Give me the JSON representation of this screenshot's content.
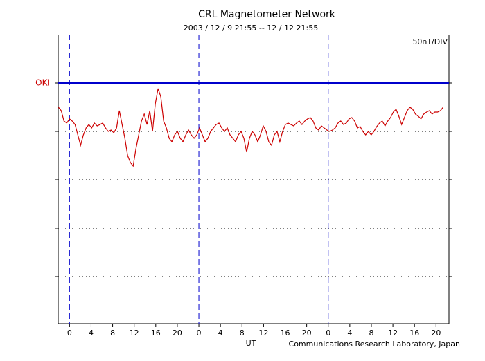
{
  "chart_data": {
    "type": "line",
    "title": "CRL Magnetometer Network",
    "subtitle": "2003 / 12 /  9   21:55 -- 12 / 12   21:55",
    "scale_label": "50nT/DIV",
    "xlabel": "UT",
    "credit": "Communications Research Laboratory, Japan",
    "xlim": [
      -2.1,
      70.4
    ],
    "ylim": [
      -248.6,
      50
    ],
    "xticks": [
      0,
      4,
      8,
      12,
      16,
      20,
      {
        "value": 24,
        "label": "0"
      },
      {
        "value": 28,
        "label": "4"
      },
      {
        "value": 32,
        "label": "8"
      },
      {
        "value": 36,
        "label": "12"
      },
      {
        "value": 40,
        "label": "16"
      },
      {
        "value": 44,
        "label": "20"
      },
      {
        "value": 48,
        "label": "0"
      },
      {
        "value": 52,
        "label": "4"
      },
      {
        "value": 56,
        "label": "8"
      },
      {
        "value": 60,
        "label": "12"
      },
      {
        "value": 64,
        "label": "16"
      },
      {
        "value": 68,
        "label": "20"
      }
    ],
    "yticks": [
      0,
      -50,
      -100,
      -150,
      -200
    ],
    "grid": true,
    "baseline_color": "#0000cc",
    "x": [
      -2.05,
      -1.54,
      -1.03,
      -0.51,
      0,
      0.51,
      1.03,
      1.54,
      2.05,
      2.57,
      3.08,
      3.59,
      4.11,
      4.62,
      5.13,
      5.65,
      6.16,
      6.68,
      7.19,
      7.7,
      8.22,
      8.73,
      9.24,
      9.76,
      10.27,
      10.78,
      11.3,
      11.81,
      12.32,
      12.84,
      13.35,
      13.86,
      14.38,
      14.89,
      15.4,
      15.92,
      16.43,
      16.94,
      17.46,
      17.97,
      18.49,
      19.0,
      19.51,
      20.03,
      20.54,
      21.05,
      21.57,
      22.08,
      22.59,
      23.11,
      23.62,
      24.13,
      24.65,
      25.16,
      25.67,
      26.19,
      26.7,
      27.21,
      27.73,
      28.24,
      28.75,
      29.27,
      29.78,
      30.3,
      30.81,
      31.32,
      31.84,
      32.35,
      32.86,
      33.38,
      33.89,
      34.4,
      34.92,
      35.43,
      35.94,
      36.46,
      36.97,
      37.48,
      38.0,
      38.51,
      39.02,
      39.54,
      40.05,
      40.56,
      41.08,
      41.59,
      42.11,
      42.62,
      43.13,
      43.65,
      44.16,
      44.67,
      45.19,
      45.7,
      46.21,
      46.73,
      47.24,
      47.75,
      48.27,
      48.78,
      49.29,
      49.81,
      50.32,
      50.83,
      51.35,
      51.86,
      52.37,
      52.89,
      53.4,
      53.92,
      54.43,
      54.94,
      55.46,
      55.97,
      56.48,
      57.0,
      57.51,
      58.02,
      58.54,
      59.05,
      59.56,
      60.08,
      60.59,
      61.1,
      61.62,
      62.13,
      62.64,
      63.16,
      63.67,
      64.18,
      64.7,
      65.21,
      65.73,
      66.24,
      66.75,
      67.27,
      67.78,
      68.29,
      68.81,
      69.32
    ],
    "series": [
      {
        "name": "OKI",
        "color": "#cc0000",
        "values": [
          -25,
          -28.6,
          -39.3,
          -41.4,
          -37.1,
          -39.3,
          -42.9,
          -53.6,
          -64.3,
          -53.6,
          -46.4,
          -42.9,
          -46.4,
          -41.4,
          -44.3,
          -42.9,
          -41.4,
          -46.4,
          -50,
          -48.6,
          -51.4,
          -46.4,
          -28.6,
          -42.9,
          -57.1,
          -75,
          -82.1,
          -85.7,
          -67.9,
          -53.6,
          -39.3,
          -32.1,
          -42.9,
          -28.6,
          -50,
          -21.4,
          -5.7,
          -14.3,
          -39.3,
          -46.4,
          -57.1,
          -60.7,
          -53.6,
          -50,
          -57.1,
          -60.7,
          -53.6,
          -48.6,
          -53.6,
          -57.1,
          -53.6,
          -46.4,
          -53.6,
          -60.7,
          -57.1,
          -50,
          -46.4,
          -42.9,
          -41.4,
          -46.4,
          -50,
          -46.4,
          -53.6,
          -57.1,
          -60.7,
          -53.6,
          -50,
          -57.1,
          -71.4,
          -57.1,
          -50,
          -53.6,
          -60.7,
          -53.6,
          -44.3,
          -50,
          -60.7,
          -64.3,
          -53.6,
          -50,
          -60.7,
          -50,
          -42.9,
          -41.4,
          -42.9,
          -44.3,
          -41.4,
          -39.3,
          -42.9,
          -39.3,
          -37.1,
          -35.7,
          -39.3,
          -46.4,
          -48.6,
          -44.3,
          -46.4,
          -48.6,
          -50,
          -48.6,
          -46.4,
          -41.4,
          -39.3,
          -42.9,
          -41.4,
          -37.1,
          -35.7,
          -39.3,
          -46.4,
          -45,
          -50,
          -53.6,
          -50,
          -53.6,
          -50,
          -45,
          -41.4,
          -39.3,
          -44.3,
          -39.3,
          -35.7,
          -30,
          -27.1,
          -34.3,
          -42.9,
          -35.7,
          -28.6,
          -25,
          -27.1,
          -32.1,
          -34.3,
          -37.1,
          -32.1,
          -30,
          -28.6,
          -32.1,
          -30,
          -30,
          -28.6,
          -25
        ]
      }
    ]
  }
}
